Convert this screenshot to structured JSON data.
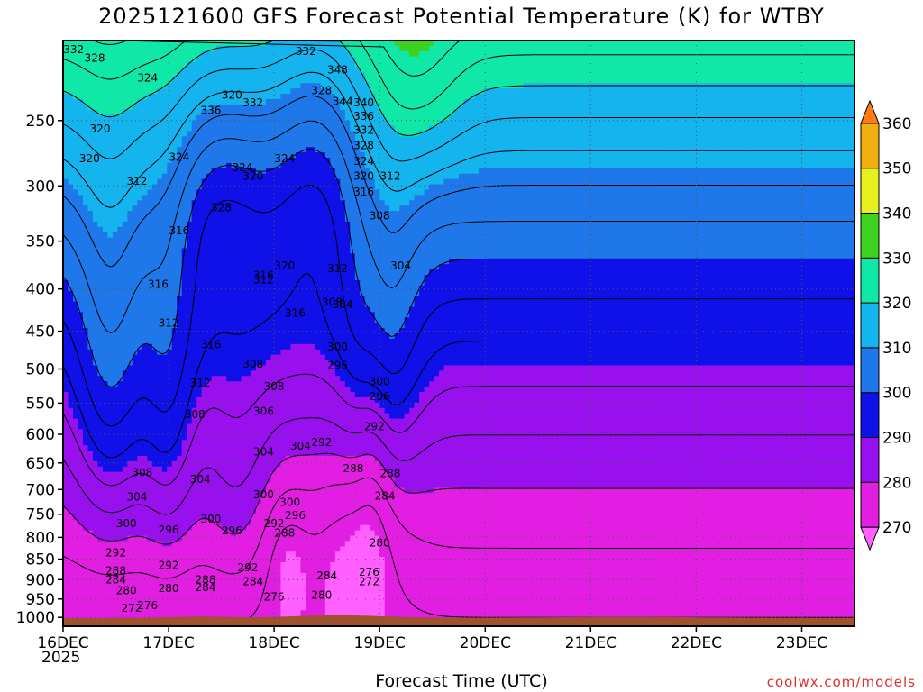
{
  "chart_data": {
    "type": "heatmap",
    "title": "2025121600 GFS Forecast Potential Temperature (K) for WTBY",
    "xlabel": "Forecast Time (UTC)",
    "ylabel": "",
    "x_ticks": [
      "16DEC",
      "17DEC",
      "18DEC",
      "19DEC",
      "20DEC",
      "21DEC",
      "22DEC",
      "23DEC"
    ],
    "x_year_label": "2025",
    "y_ticks": [
      250,
      300,
      350,
      400,
      450,
      500,
      550,
      600,
      650,
      700,
      750,
      800,
      850,
      900,
      950,
      1000
    ],
    "ylim": [
      1025,
      200
    ],
    "y_scale": "log",
    "colorbar": {
      "ticks": [
        270,
        280,
        290,
        300,
        310,
        320,
        330,
        340,
        350,
        360
      ],
      "range": [
        265,
        365
      ],
      "colors": [
        {
          "from": 265,
          "to": 270,
          "color": "#ff60ff"
        },
        {
          "from": 270,
          "to": 280,
          "color": "#e21ee2"
        },
        {
          "from": 280,
          "to": 290,
          "color": "#9810ee"
        },
        {
          "from": 290,
          "to": 300,
          "color": "#1010e8"
        },
        {
          "from": 300,
          "to": 310,
          "color": "#1e78ea"
        },
        {
          "from": 310,
          "to": 320,
          "color": "#14b4ef"
        },
        {
          "from": 320,
          "to": 330,
          "color": "#10e8a8"
        },
        {
          "from": 330,
          "to": 340,
          "color": "#3cd21e"
        },
        {
          "from": 340,
          "to": 350,
          "color": "#e6f01e"
        },
        {
          "from": 350,
          "to": 360,
          "color": "#f0b010"
        },
        {
          "from": 360,
          "to": 365,
          "color": "#ff7a10"
        }
      ]
    },
    "contour_interval_k": 4,
    "terrain_color": "#a0522d",
    "contour_labels": [
      {
        "value": "332",
        "x": 0.1,
        "p": 205
      },
      {
        "value": "328",
        "x": 0.3,
        "p": 210
      },
      {
        "value": "324",
        "x": 0.8,
        "p": 222
      },
      {
        "value": "320",
        "x": 1.6,
        "p": 233
      },
      {
        "value": "320",
        "x": 0.35,
        "p": 256
      },
      {
        "value": "320",
        "x": 0.25,
        "p": 278
      },
      {
        "value": "312",
        "x": 0.7,
        "p": 296
      },
      {
        "value": "336",
        "x": 1.4,
        "p": 243
      },
      {
        "value": "332",
        "x": 1.8,
        "p": 238
      },
      {
        "value": "324",
        "x": 1.1,
        "p": 277
      },
      {
        "value": "324",
        "x": 1.7,
        "p": 285
      },
      {
        "value": "320",
        "x": 1.8,
        "p": 292
      },
      {
        "value": "328",
        "x": 1.5,
        "p": 319
      },
      {
        "value": "324",
        "x": 2.1,
        "p": 278
      },
      {
        "value": "332",
        "x": 2.3,
        "p": 206
      },
      {
        "value": "348",
        "x": 2.6,
        "p": 217
      },
      {
        "value": "328",
        "x": 2.45,
        "p": 230
      },
      {
        "value": "344",
        "x": 2.65,
        "p": 237
      },
      {
        "value": "340",
        "x": 2.85,
        "p": 238
      },
      {
        "value": "336",
        "x": 2.85,
        "p": 247
      },
      {
        "value": "332",
        "x": 2.85,
        "p": 257
      },
      {
        "value": "328",
        "x": 2.85,
        "p": 268
      },
      {
        "value": "324",
        "x": 2.85,
        "p": 280
      },
      {
        "value": "320",
        "x": 2.85,
        "p": 292
      },
      {
        "value": "316",
        "x": 2.85,
        "p": 305
      },
      {
        "value": "312",
        "x": 3.1,
        "p": 292
      },
      {
        "value": "308",
        "x": 3.0,
        "p": 326
      },
      {
        "value": "304",
        "x": 3.2,
        "p": 375
      },
      {
        "value": "316",
        "x": 1.1,
        "p": 340
      },
      {
        "value": "316",
        "x": 0.9,
        "p": 395
      },
      {
        "value": "312",
        "x": 1.9,
        "p": 390
      },
      {
        "value": "316",
        "x": 1.9,
        "p": 385
      },
      {
        "value": "320",
        "x": 2.1,
        "p": 375
      },
      {
        "value": "312",
        "x": 2.6,
        "p": 378
      },
      {
        "value": "316",
        "x": 2.2,
        "p": 428
      },
      {
        "value": "308",
        "x": 2.55,
        "p": 415
      },
      {
        "value": "304",
        "x": 2.65,
        "p": 418
      },
      {
        "value": "312",
        "x": 1.0,
        "p": 440
      },
      {
        "value": "316",
        "x": 1.4,
        "p": 467
      },
      {
        "value": "308",
        "x": 1.8,
        "p": 493
      },
      {
        "value": "300",
        "x": 2.6,
        "p": 470
      },
      {
        "value": "296",
        "x": 2.6,
        "p": 495
      },
      {
        "value": "312",
        "x": 1.3,
        "p": 520
      },
      {
        "value": "306",
        "x": 1.9,
        "p": 563
      },
      {
        "value": "308",
        "x": 2.0,
        "p": 525
      },
      {
        "value": "308",
        "x": 1.25,
        "p": 568
      },
      {
        "value": "300",
        "x": 3.0,
        "p": 518
      },
      {
        "value": "296",
        "x": 3.0,
        "p": 540
      },
      {
        "value": "292",
        "x": 2.95,
        "p": 587
      },
      {
        "value": "292",
        "x": 2.45,
        "p": 614
      },
      {
        "value": "304",
        "x": 1.9,
        "p": 630
      },
      {
        "value": "304",
        "x": 2.25,
        "p": 620
      },
      {
        "value": "288",
        "x": 2.75,
        "p": 660
      },
      {
        "value": "288",
        "x": 3.1,
        "p": 669
      },
      {
        "value": "308",
        "x": 0.75,
        "p": 668
      },
      {
        "value": "304",
        "x": 1.3,
        "p": 680
      },
      {
        "value": "300",
        "x": 1.9,
        "p": 710
      },
      {
        "value": "304",
        "x": 0.7,
        "p": 715
      },
      {
        "value": "300",
        "x": 2.15,
        "p": 725
      },
      {
        "value": "284",
        "x": 3.05,
        "p": 713
      },
      {
        "value": "296",
        "x": 2.2,
        "p": 752
      },
      {
        "value": "300",
        "x": 0.6,
        "p": 770
      },
      {
        "value": "296",
        "x": 1.0,
        "p": 783
      },
      {
        "value": "300",
        "x": 1.4,
        "p": 760
      },
      {
        "value": "296",
        "x": 1.6,
        "p": 785
      },
      {
        "value": "292",
        "x": 2.0,
        "p": 770
      },
      {
        "value": "288",
        "x": 2.1,
        "p": 790
      },
      {
        "value": "280",
        "x": 3.0,
        "p": 812
      },
      {
        "value": "292",
        "x": 0.5,
        "p": 835
      },
      {
        "value": "292",
        "x": 1.0,
        "p": 865
      },
      {
        "value": "292",
        "x": 1.75,
        "p": 870
      },
      {
        "value": "288",
        "x": 0.5,
        "p": 878
      },
      {
        "value": "284",
        "x": 0.5,
        "p": 900
      },
      {
        "value": "288",
        "x": 1.35,
        "p": 900
      },
      {
        "value": "284",
        "x": 1.35,
        "p": 920
      },
      {
        "value": "284",
        "x": 1.8,
        "p": 905
      },
      {
        "value": "276",
        "x": 2.9,
        "p": 882
      },
      {
        "value": "272",
        "x": 2.9,
        "p": 905
      },
      {
        "value": "284",
        "x": 2.5,
        "p": 890
      },
      {
        "value": "280",
        "x": 0.6,
        "p": 928
      },
      {
        "value": "280",
        "x": 1.0,
        "p": 922
      },
      {
        "value": "280",
        "x": 2.45,
        "p": 940
      },
      {
        "value": "276",
        "x": 2.0,
        "p": 944
      },
      {
        "value": "272",
        "x": 0.65,
        "p": 975
      },
      {
        "value": "276",
        "x": 0.8,
        "p": 968
      }
    ]
  },
  "page": {
    "credit": "coolwx.com/models"
  }
}
